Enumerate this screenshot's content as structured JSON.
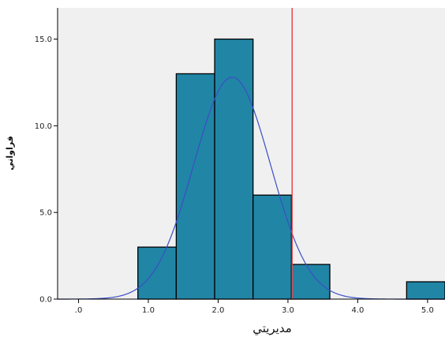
{
  "chart_data": {
    "type": "bar",
    "subtype": "histogram",
    "xlabel": "مديريتي",
    "ylabel": "فراواني",
    "xlim": [
      -0.3,
      5.25
    ],
    "ylim": [
      0,
      16.8
    ],
    "x_ticks": [
      {
        "value": 0,
        "label": ".0"
      },
      {
        "value": 1,
        "label": "1.0"
      },
      {
        "value": 2,
        "label": "2.0"
      },
      {
        "value": 3,
        "label": "3.0"
      },
      {
        "value": 4,
        "label": "4.0"
      },
      {
        "value": 5,
        "label": "5.0"
      }
    ],
    "y_ticks": [
      {
        "value": 0,
        "label": "0.0"
      },
      {
        "value": 5,
        "label": "5.0"
      },
      {
        "value": 10,
        "label": "10.0"
      },
      {
        "value": 15,
        "label": "15.0"
      }
    ],
    "bins": [
      {
        "start": 0.85,
        "end": 1.4,
        "count": 3
      },
      {
        "start": 1.4,
        "end": 1.95,
        "count": 13
      },
      {
        "start": 1.95,
        "end": 2.5,
        "count": 15
      },
      {
        "start": 2.5,
        "end": 3.05,
        "count": 6
      },
      {
        "start": 3.05,
        "end": 3.6,
        "count": 2
      },
      {
        "start": 4.7,
        "end": 5.25,
        "count": 1
      }
    ],
    "normal_curve": {
      "mean": 2.2,
      "sd": 0.55,
      "peak": 12.8
    },
    "reference_line_x": 3.06,
    "grid": false,
    "colors": {
      "bar_fill": "#2185a6",
      "bar_stroke": "#000000",
      "curve": "#3a4fc4",
      "reference_line": "#e8484e",
      "plot_background": "#f0f0f0"
    }
  }
}
